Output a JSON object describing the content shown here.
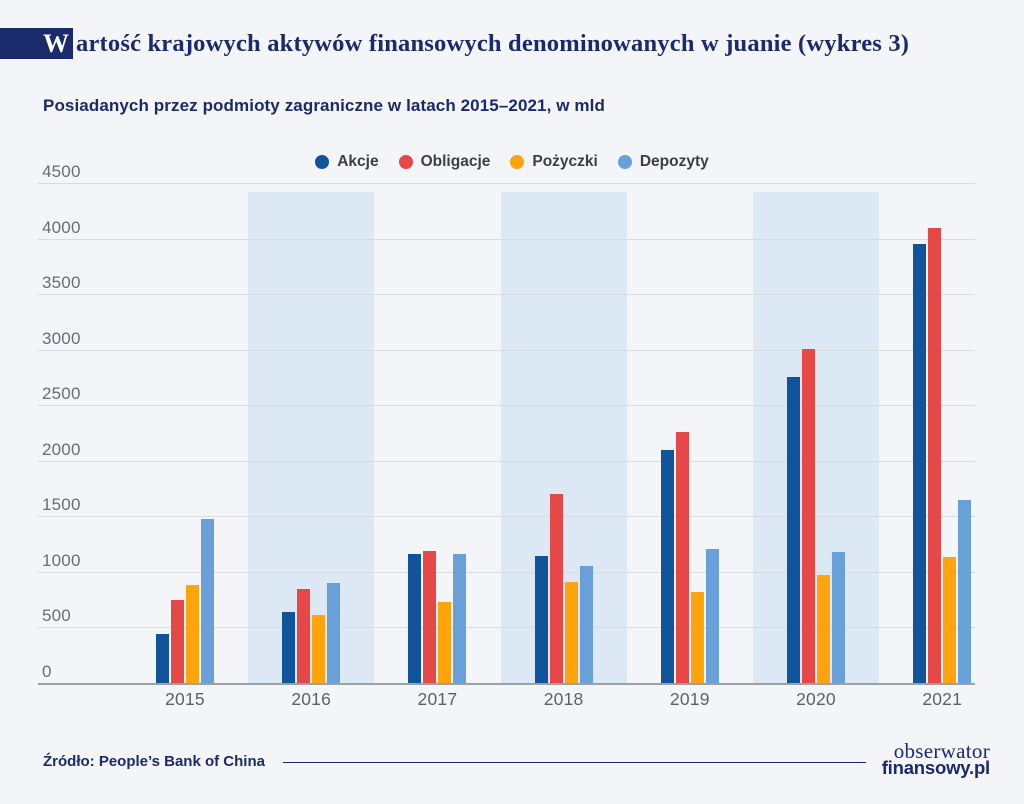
{
  "header": {
    "title_initial": "W",
    "title_rest": "artość krajowych aktywów finansowych denominowanych w juanie (wykres 3)",
    "subtitle": "Posiadanych przez podmioty zagraniczne w latach 2015–2021, w mld"
  },
  "chart_data": {
    "type": "bar",
    "title": "Wartość krajowych aktywów finansowych denominowanych w juanie",
    "subtitle": "Posiadanych przez podmioty zagraniczne w latach 2015–2021, w mld",
    "categories": [
      "2015",
      "2016",
      "2017",
      "2018",
      "2019",
      "2020",
      "2021"
    ],
    "series": [
      {
        "name": "Akcje",
        "color": "#10549b",
        "values": [
          440,
          635,
          1165,
          1145,
          2095,
          2755,
          3950
        ]
      },
      {
        "name": "Obligacje",
        "color": "#e64848",
        "values": [
          750,
          845,
          1190,
          1700,
          2260,
          3010,
          4095
        ]
      },
      {
        "name": "Pożyczki",
        "color": "#ffa40d",
        "values": [
          885,
          610,
          725,
          910,
          815,
          970,
          1130
        ]
      },
      {
        "name": "Depozyty",
        "color": "#69a0d8",
        "values": [
          1475,
          900,
          1165,
          1055,
          1210,
          1180,
          1650
        ]
      }
    ],
    "ylim": [
      0,
      4500
    ],
    "yticks": [
      0,
      500,
      1000,
      1500,
      2000,
      2500,
      3000,
      3500,
      4000,
      4500
    ],
    "grid": true,
    "legend_position": "top-center",
    "highlight_band_categories": [
      "2016",
      "2018",
      "2020"
    ],
    "highlight_band_color": "#dce9f5"
  },
  "footer": {
    "source": "Źródło: People’s Bank of China",
    "logo_line1": "obserwator",
    "logo_line2": "finansowy.pl"
  }
}
